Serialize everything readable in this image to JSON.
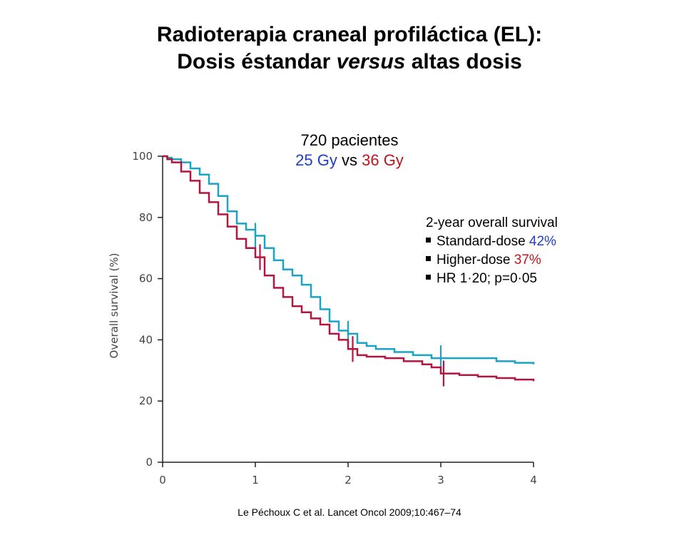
{
  "title": {
    "line1": "Radioterapia craneal profiláctica (EL):",
    "line2_pre": "Dosis éstandar ",
    "line2_em": "versus",
    "line2_post": " altas dosis"
  },
  "subhead": {
    "patients": "720 pacientes",
    "arm_a": "25 Gy",
    "vs": " vs ",
    "arm_b": "36 Gy"
  },
  "legend": {
    "heading": "2-year overall survival",
    "item1_label": "Standard-dose ",
    "item1_value": "42%",
    "item2_label": "Higher-dose ",
    "item2_value": "37%",
    "item3": "HR 1·20; p=0·05"
  },
  "citation": "Le Péchoux C et al. Lancet Oncol 2009;10:467–74",
  "colors": {
    "standard": "#1aa3c4",
    "higher": "#b5143f",
    "axis": "#222222",
    "blue_text": "#1f3fbf",
    "red_text": "#c0141e"
  },
  "chart_data": {
    "type": "line",
    "title": "",
    "xlabel": "",
    "ylabel": "Overall survival (%)",
    "xlim": [
      0,
      4
    ],
    "ylim": [
      0,
      100
    ],
    "x_ticks": [
      "0",
      "1",
      "2",
      "3",
      "4"
    ],
    "y_ticks": [
      "0",
      "20",
      "40",
      "60",
      "80",
      "100"
    ],
    "grid": false,
    "step": true,
    "series": [
      {
        "color": "#1aa3c4",
        "points": [
          [
            0,
            100
          ],
          [
            0.05,
            99.5
          ],
          [
            0.1,
            99
          ],
          [
            0.2,
            98
          ],
          [
            0.3,
            96
          ],
          [
            0.4,
            94
          ],
          [
            0.5,
            91
          ],
          [
            0.6,
            87
          ],
          [
            0.7,
            82
          ],
          [
            0.8,
            78
          ],
          [
            0.9,
            76
          ],
          [
            1.0,
            74
          ],
          [
            1.1,
            70
          ],
          [
            1.2,
            66
          ],
          [
            1.3,
            63
          ],
          [
            1.4,
            61
          ],
          [
            1.5,
            58
          ],
          [
            1.6,
            54
          ],
          [
            1.7,
            50
          ],
          [
            1.8,
            46
          ],
          [
            1.9,
            43
          ],
          [
            2.0,
            42
          ],
          [
            2.1,
            39
          ],
          [
            2.2,
            38
          ],
          [
            2.3,
            37
          ],
          [
            2.5,
            36
          ],
          [
            2.7,
            35
          ],
          [
            2.9,
            34
          ],
          [
            3.0,
            34
          ],
          [
            3.3,
            34
          ],
          [
            3.6,
            33
          ],
          [
            3.8,
            32.5
          ],
          [
            4.0,
            32
          ]
        ],
        "censor_marks": [
          [
            1.0,
            74
          ],
          [
            2.0,
            42
          ],
          [
            3.0,
            34
          ]
        ]
      },
      {
        "color": "#b5143f",
        "points": [
          [
            0,
            100
          ],
          [
            0.05,
            99
          ],
          [
            0.1,
            98
          ],
          [
            0.2,
            95
          ],
          [
            0.3,
            92
          ],
          [
            0.4,
            88
          ],
          [
            0.5,
            85
          ],
          [
            0.6,
            81
          ],
          [
            0.7,
            77
          ],
          [
            0.8,
            73
          ],
          [
            0.9,
            70
          ],
          [
            1.0,
            67
          ],
          [
            1.1,
            61
          ],
          [
            1.2,
            57
          ],
          [
            1.3,
            54
          ],
          [
            1.4,
            51
          ],
          [
            1.5,
            49
          ],
          [
            1.6,
            47
          ],
          [
            1.7,
            45
          ],
          [
            1.8,
            42
          ],
          [
            1.9,
            40
          ],
          [
            2.0,
            37
          ],
          [
            2.1,
            35
          ],
          [
            2.2,
            34.5
          ],
          [
            2.4,
            34
          ],
          [
            2.6,
            33
          ],
          [
            2.8,
            32
          ],
          [
            2.9,
            31
          ],
          [
            3.0,
            29
          ],
          [
            3.2,
            28.5
          ],
          [
            3.4,
            28
          ],
          [
            3.6,
            27.5
          ],
          [
            3.8,
            27
          ],
          [
            4.0,
            26.5
          ]
        ],
        "censor_marks": [
          [
            1.05,
            67
          ],
          [
            2.05,
            37
          ],
          [
            3.03,
            29
          ]
        ]
      }
    ]
  }
}
